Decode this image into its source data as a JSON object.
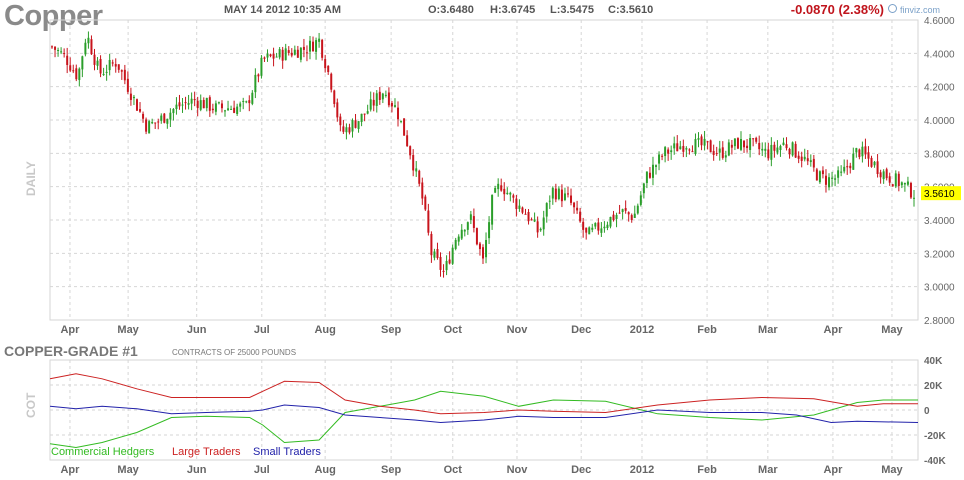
{
  "header": {
    "symbol": "Copper",
    "datetime": "MAY 14 2012 10:35 AM",
    "open": "O:3.6480",
    "high": "H:3.6745",
    "low": "L:3.5475",
    "close": "C:3.5610",
    "change": "-0.0870 (2.38%)",
    "brand": "finviz.com"
  },
  "colors": {
    "up": "#2a9e2a",
    "down": "#c8141c",
    "grid": "#d6d6d6",
    "axis_text": "#666666",
    "price_tag": "#ffff00",
    "commercial": "#33bb22",
    "large": "#cc2222",
    "small": "#2222aa"
  },
  "chart_data": [
    {
      "type": "candlestick",
      "panel_label": "DAILY",
      "ylim": [
        2.8,
        4.6
      ],
      "y_ticks": [
        "4.6000",
        "4.4000",
        "4.2000",
        "4.0000",
        "3.8000",
        "3.6000",
        "3.4000",
        "3.2000",
        "3.0000",
        "2.8000"
      ],
      "last_price_tag": "3.5610",
      "x_labels": [
        "Apr",
        "May",
        "Jun",
        "Jul",
        "Aug",
        "Sep",
        "Oct",
        "Nov",
        "Dec",
        "2012",
        "Feb",
        "Mar",
        "Apr",
        "May"
      ],
      "x_label_fractions": [
        0.023,
        0.09,
        0.169,
        0.244,
        0.317,
        0.393,
        0.464,
        0.538,
        0.612,
        0.682,
        0.757,
        0.827,
        0.902,
        0.97
      ],
      "price_path": [
        {
          "t": 0.0,
          "p": 4.44
        },
        {
          "t": 0.015,
          "p": 4.38
        },
        {
          "t": 0.03,
          "p": 4.26
        },
        {
          "t": 0.04,
          "p": 4.52
        },
        {
          "t": 0.055,
          "p": 4.28
        },
        {
          "t": 0.075,
          "p": 4.35
        },
        {
          "t": 0.09,
          "p": 4.18
        },
        {
          "t": 0.11,
          "p": 3.96
        },
        {
          "t": 0.125,
          "p": 4.0
        },
        {
          "t": 0.145,
          "p": 4.08
        },
        {
          "t": 0.165,
          "p": 4.12
        },
        {
          "t": 0.19,
          "p": 4.07
        },
        {
          "t": 0.225,
          "p": 4.08
        },
        {
          "t": 0.245,
          "p": 4.36
        },
        {
          "t": 0.27,
          "p": 4.4
        },
        {
          "t": 0.295,
          "p": 4.43
        },
        {
          "t": 0.31,
          "p": 4.48
        },
        {
          "t": 0.325,
          "p": 4.2
        },
        {
          "t": 0.335,
          "p": 3.92
        },
        {
          "t": 0.36,
          "p": 4.02
        },
        {
          "t": 0.385,
          "p": 4.18
        },
        {
          "t": 0.4,
          "p": 4.06
        },
        {
          "t": 0.415,
          "p": 3.82
        },
        {
          "t": 0.43,
          "p": 3.52
        },
        {
          "t": 0.44,
          "p": 3.2
        },
        {
          "t": 0.455,
          "p": 3.08
        },
        {
          "t": 0.47,
          "p": 3.32
        },
        {
          "t": 0.485,
          "p": 3.42
        },
        {
          "t": 0.5,
          "p": 3.15
        },
        {
          "t": 0.51,
          "p": 3.5
        },
        {
          "t": 0.52,
          "p": 3.62
        },
        {
          "t": 0.535,
          "p": 3.52
        },
        {
          "t": 0.55,
          "p": 3.44
        },
        {
          "t": 0.565,
          "p": 3.32
        },
        {
          "t": 0.58,
          "p": 3.58
        },
        {
          "t": 0.6,
          "p": 3.52
        },
        {
          "t": 0.62,
          "p": 3.3
        },
        {
          "t": 0.64,
          "p": 3.38
        },
        {
          "t": 0.66,
          "p": 3.45
        },
        {
          "t": 0.675,
          "p": 3.42
        },
        {
          "t": 0.69,
          "p": 3.66
        },
        {
          "t": 0.71,
          "p": 3.8
        },
        {
          "t": 0.735,
          "p": 3.86
        },
        {
          "t": 0.76,
          "p": 3.84
        },
        {
          "t": 0.775,
          "p": 3.8
        },
        {
          "t": 0.795,
          "p": 3.86
        },
        {
          "t": 0.81,
          "p": 3.85
        },
        {
          "t": 0.83,
          "p": 3.8
        },
        {
          "t": 0.85,
          "p": 3.86
        },
        {
          "t": 0.87,
          "p": 3.78
        },
        {
          "t": 0.89,
          "p": 3.66
        },
        {
          "t": 0.9,
          "p": 3.64
        },
        {
          "t": 0.915,
          "p": 3.66
        },
        {
          "t": 0.935,
          "p": 3.82
        },
        {
          "t": 0.95,
          "p": 3.75
        },
        {
          "t": 0.97,
          "p": 3.66
        },
        {
          "t": 0.985,
          "p": 3.62
        },
        {
          "t": 1.0,
          "p": 3.561
        }
      ]
    },
    {
      "type": "line",
      "panel_label": "COT",
      "title": "COPPER-GRADE #1",
      "subtitle": "CONTRACTS OF 25000 POUNDS",
      "ylim": [
        -40000,
        40000
      ],
      "y_ticks": [
        "40K",
        "20K",
        "0",
        "-20K",
        "-40K"
      ],
      "x_labels": [
        "Apr",
        "May",
        "Jun",
        "Jul",
        "Aug",
        "Sep",
        "Oct",
        "Nov",
        "Dec",
        "2012",
        "Feb",
        "Mar",
        "Apr",
        "May"
      ],
      "series": [
        {
          "name": "Commercial Hedgers",
          "colorKey": "commercial",
          "points": [
            {
              "t": 0.0,
              "v": -27000
            },
            {
              "t": 0.03,
              "v": -30000
            },
            {
              "t": 0.06,
              "v": -26000
            },
            {
              "t": 0.1,
              "v": -18000
            },
            {
              "t": 0.14,
              "v": -6000
            },
            {
              "t": 0.18,
              "v": -5000
            },
            {
              "t": 0.23,
              "v": -6000
            },
            {
              "t": 0.245,
              "v": -12000
            },
            {
              "t": 0.27,
              "v": -26000
            },
            {
              "t": 0.31,
              "v": -24000
            },
            {
              "t": 0.34,
              "v": -2000
            },
            {
              "t": 0.38,
              "v": 3000
            },
            {
              "t": 0.42,
              "v": 8000
            },
            {
              "t": 0.45,
              "v": 15000
            },
            {
              "t": 0.5,
              "v": 11000
            },
            {
              "t": 0.54,
              "v": 3000
            },
            {
              "t": 0.58,
              "v": 8000
            },
            {
              "t": 0.64,
              "v": 7000
            },
            {
              "t": 0.7,
              "v": -3000
            },
            {
              "t": 0.76,
              "v": -6000
            },
            {
              "t": 0.82,
              "v": -8000
            },
            {
              "t": 0.88,
              "v": -4000
            },
            {
              "t": 0.93,
              "v": 6000
            },
            {
              "t": 0.96,
              "v": 8000
            },
            {
              "t": 1.0,
              "v": 8000
            }
          ]
        },
        {
          "name": "Large Traders",
          "colorKey": "large",
          "points": [
            {
              "t": 0.0,
              "v": 25000
            },
            {
              "t": 0.03,
              "v": 29000
            },
            {
              "t": 0.06,
              "v": 25000
            },
            {
              "t": 0.1,
              "v": 17000
            },
            {
              "t": 0.14,
              "v": 10000
            },
            {
              "t": 0.18,
              "v": 10000
            },
            {
              "t": 0.23,
              "v": 10000
            },
            {
              "t": 0.245,
              "v": 15000
            },
            {
              "t": 0.27,
              "v": 23000
            },
            {
              "t": 0.31,
              "v": 22000
            },
            {
              "t": 0.34,
              "v": 8000
            },
            {
              "t": 0.38,
              "v": 3000
            },
            {
              "t": 0.42,
              "v": 0
            },
            {
              "t": 0.45,
              "v": -3000
            },
            {
              "t": 0.5,
              "v": -2000
            },
            {
              "t": 0.54,
              "v": 0
            },
            {
              "t": 0.58,
              "v": -1000
            },
            {
              "t": 0.64,
              "v": -2000
            },
            {
              "t": 0.7,
              "v": 4000
            },
            {
              "t": 0.76,
              "v": 8000
            },
            {
              "t": 0.82,
              "v": 10000
            },
            {
              "t": 0.88,
              "v": 9000
            },
            {
              "t": 0.93,
              "v": 3000
            },
            {
              "t": 0.96,
              "v": 5000
            },
            {
              "t": 1.0,
              "v": 5000
            }
          ]
        },
        {
          "name": "Small Traders",
          "colorKey": "small",
          "points": [
            {
              "t": 0.0,
              "v": 3000
            },
            {
              "t": 0.03,
              "v": 1000
            },
            {
              "t": 0.06,
              "v": 3000
            },
            {
              "t": 0.1,
              "v": 1000
            },
            {
              "t": 0.14,
              "v": -3000
            },
            {
              "t": 0.18,
              "v": -2000
            },
            {
              "t": 0.23,
              "v": -1000
            },
            {
              "t": 0.245,
              "v": 0
            },
            {
              "t": 0.27,
              "v": 4000
            },
            {
              "t": 0.31,
              "v": 2000
            },
            {
              "t": 0.34,
              "v": -4000
            },
            {
              "t": 0.38,
              "v": -6000
            },
            {
              "t": 0.42,
              "v": -8000
            },
            {
              "t": 0.45,
              "v": -10000
            },
            {
              "t": 0.5,
              "v": -8000
            },
            {
              "t": 0.54,
              "v": -5000
            },
            {
              "t": 0.58,
              "v": -6000
            },
            {
              "t": 0.64,
              "v": -6000
            },
            {
              "t": 0.7,
              "v": 0
            },
            {
              "t": 0.76,
              "v": -2000
            },
            {
              "t": 0.82,
              "v": -2000
            },
            {
              "t": 0.86,
              "v": -4000
            },
            {
              "t": 0.9,
              "v": -10000
            },
            {
              "t": 0.93,
              "v": -9000
            },
            {
              "t": 1.0,
              "v": -10000
            }
          ]
        }
      ]
    }
  ]
}
